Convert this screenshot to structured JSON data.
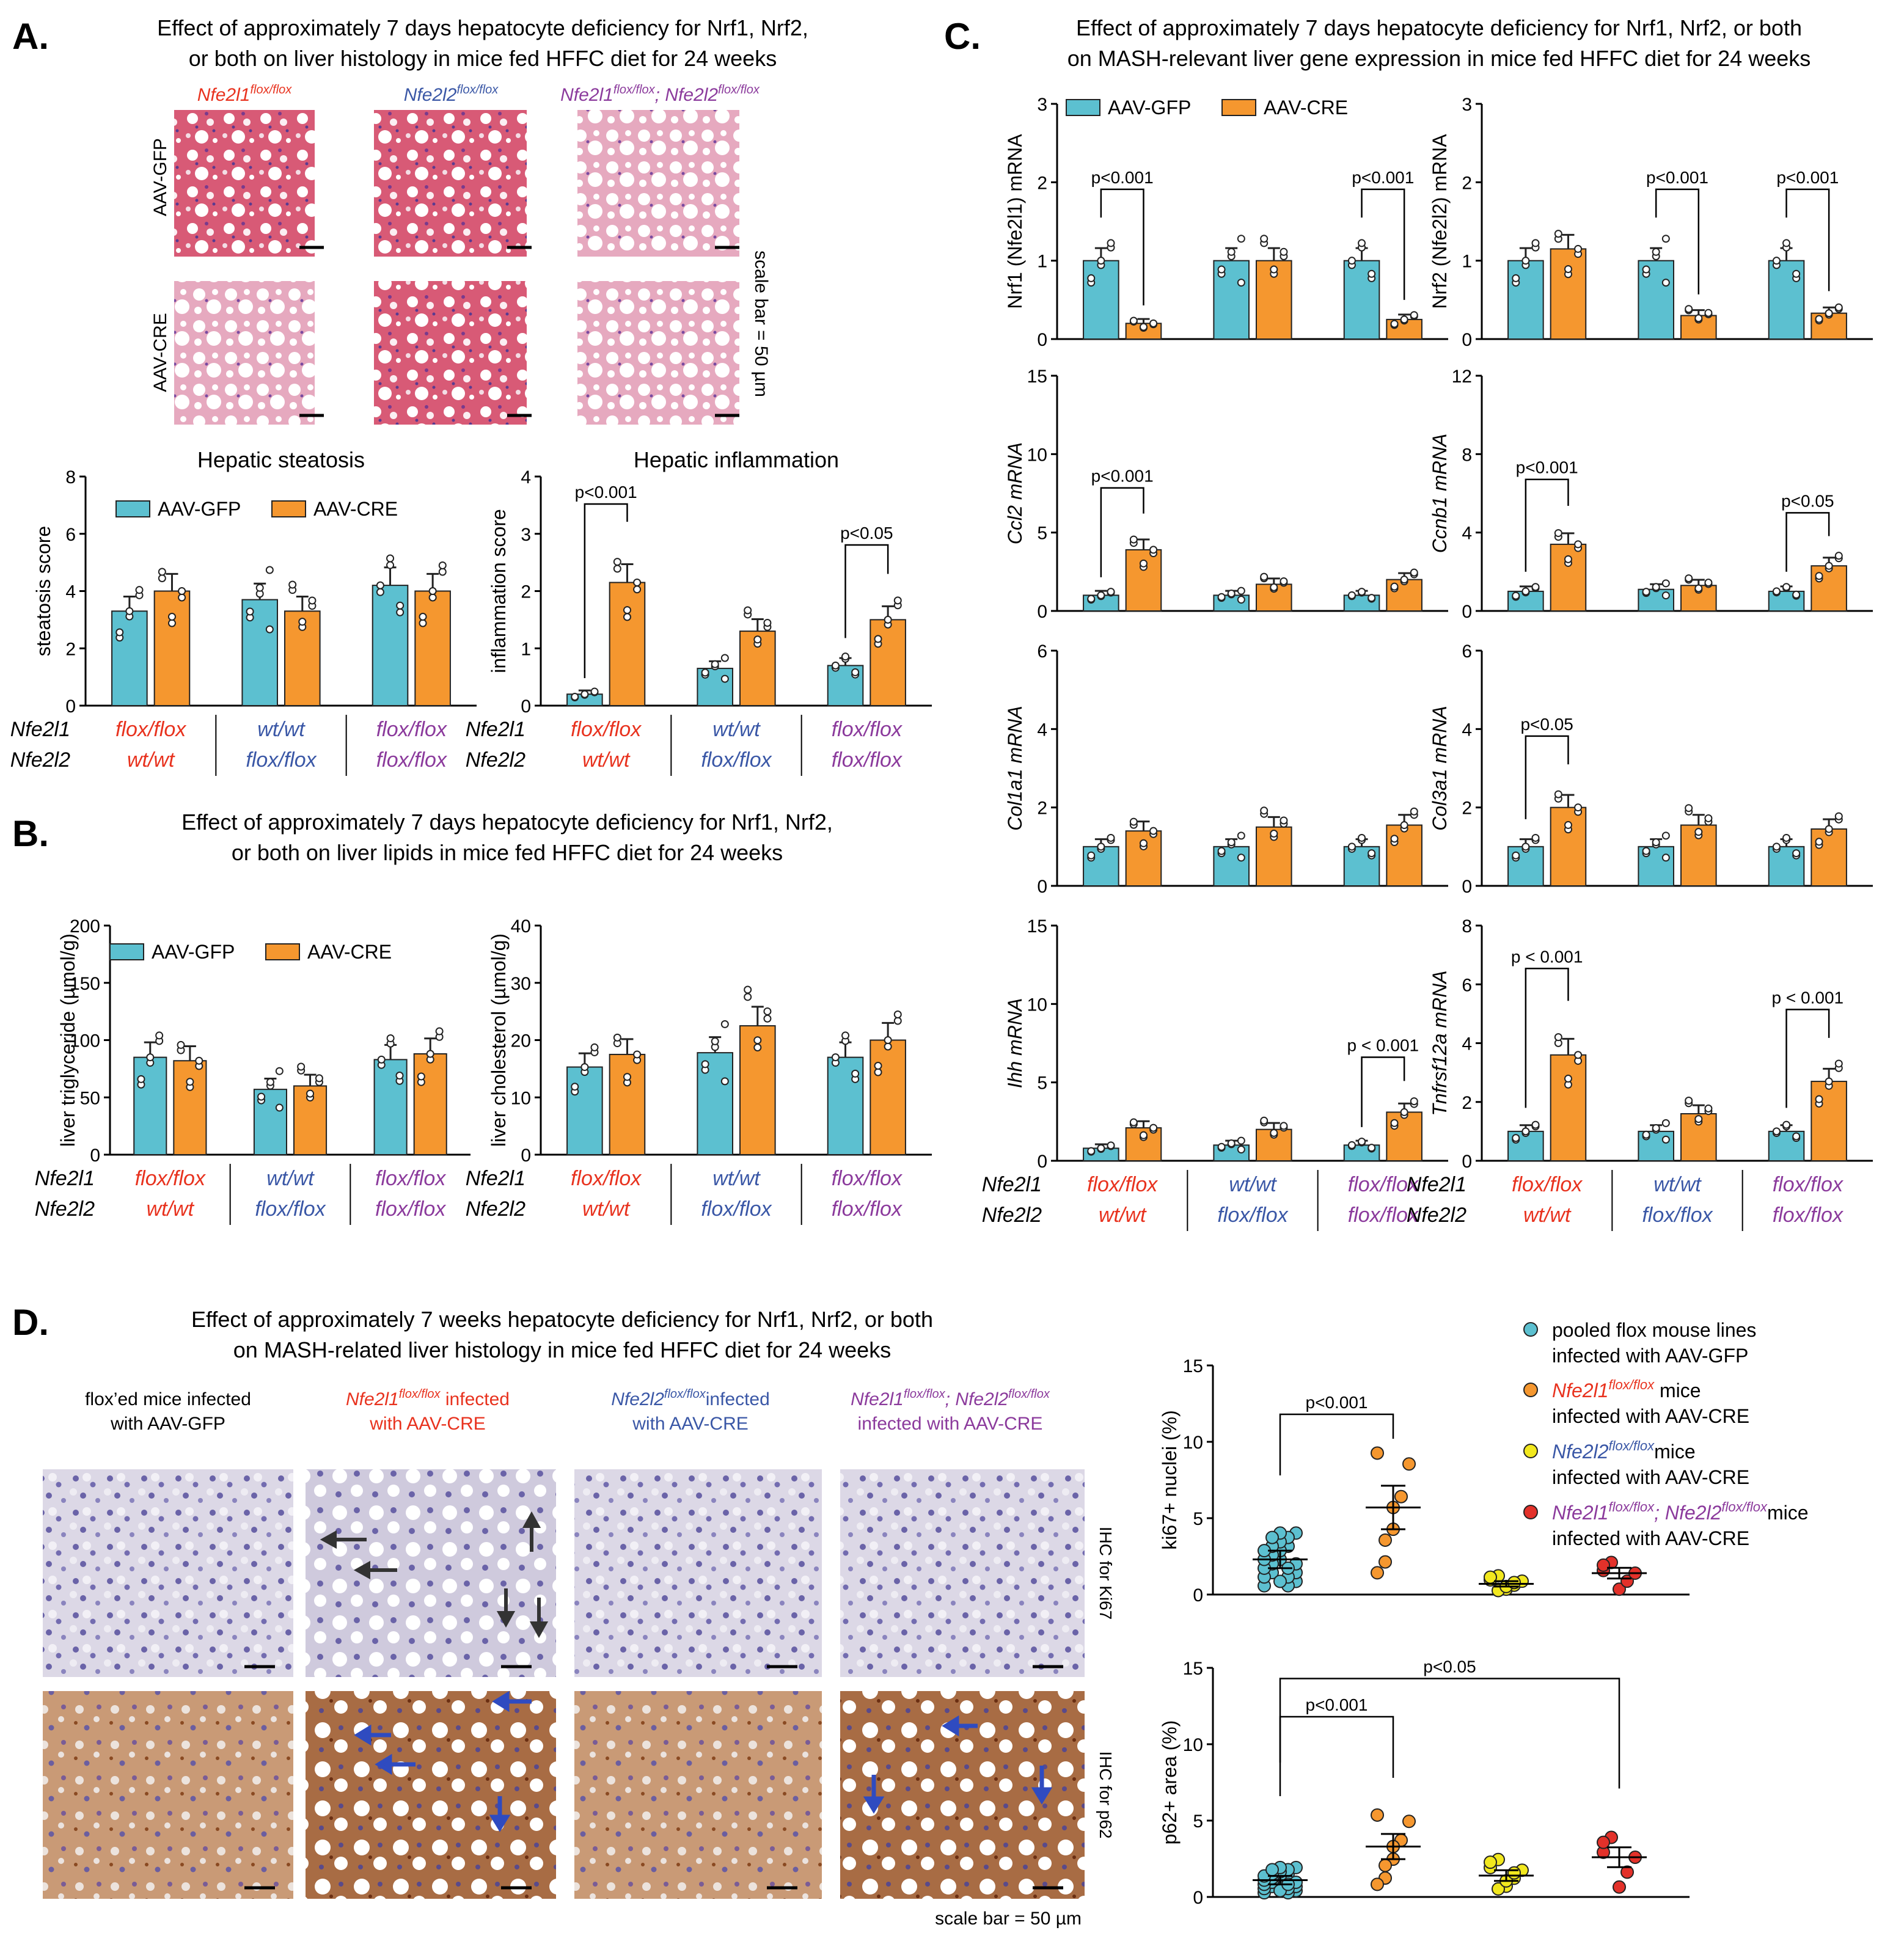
{
  "colors": {
    "gfp": "#5cc0d0",
    "cre": "#f5972f",
    "wt_red": "#e8321e",
    "flox_blue": "#3a57a6",
    "dbl_purple": "#8b3a9c",
    "ki_yellow": "#f2e81e",
    "ki_red": "#e3312a",
    "he_bg": "#d9607a",
    "ihc_bg": "#c9c4d6",
    "p62_bg": "#b98562"
  },
  "panels": {
    "A": "A.",
    "B": "B.",
    "C": "C.",
    "D": "D."
  },
  "A": {
    "title1": "Effect of approximately 7 days hepatocyte deficiency for Nrf1, Nrf2,",
    "title2": "or both on liver histology in mice fed HFFC diet for 24 weeks",
    "geno_cols": [
      "Nfe2l1",
      "Nfe2l2",
      "Nfe2l1"
    ],
    "geno_sup": "flox/flox",
    "geno_extra": "; ",
    "geno_extra2": "Nfe2l2",
    "rows": [
      "AAV-GFP",
      "AAV-CRE"
    ],
    "scale": "scale bar = 50 µm"
  },
  "B": {
    "title1": "Effect of approximately 7 days hepatocyte deficiency for Nrf1, Nrf2,",
    "title2": "or both on liver lipids in mice fed HFFC diet for 24 weeks"
  },
  "C": {
    "title1": "Effect of approximately 7 days hepatocyte deficiency for Nrf1, Nrf2, or both",
    "title2": "on MASH-relevant liver gene expression in mice fed HFFC diet for 24 weeks"
  },
  "D": {
    "title1": "Effect of approximately 7 weeks hepatocyte deficiency for Nrf1, Nrf2, or both",
    "title2": "on MASH-related liver histology in mice fed HFFC diet for 24 weeks",
    "col_labels": [
      [
        "flox’ed mice infected",
        "with AAV-GFP"
      ],
      [
        "Nfe2l1",
        "infected",
        "with AAV-CRE"
      ],
      [
        "Nfe2l2",
        "infected",
        "with AAV-CRE"
      ],
      [
        "Nfe2l1",
        "; Nfe2l2",
        "infected with AAV-CRE"
      ]
    ],
    "row_labels": [
      "IHC for Ki67",
      "IHC for p62"
    ],
    "scale": "scale bar = 50 µm",
    "legend": [
      [
        "pooled flox mouse lines",
        "infected with AAV-GFP"
      ],
      [
        "Nfe2l1",
        "mice",
        "infected with AAV-CRE"
      ],
      [
        "Nfe2l2",
        "mice",
        "infected with AAV-CRE"
      ],
      [
        "Nfe2l1",
        "; Nfe2l2",
        "mice",
        "infected with AAV-CRE"
      ]
    ]
  },
  "legend": {
    "gfp": "AAV-GFP",
    "cre": "AAV-CRE"
  },
  "genotype": {
    "row1": "Nfe2l1",
    "row2": "Nfe2l2",
    "g1": [
      "flox/flox",
      "wt/wt"
    ],
    "g2": [
      "wt/wt",
      "flox/flox"
    ],
    "g3": [
      "flox/flox",
      "flox/flox"
    ]
  },
  "chart_data": [
    {
      "id": "steatosis",
      "type": "bar",
      "title": "Hepatic steatosis",
      "ylabel": "steatosis score",
      "ylim": [
        0,
        8
      ],
      "yticks": [
        0,
        2,
        4,
        6,
        8
      ],
      "series": [
        {
          "name": "AAV-GFP",
          "values": [
            3.3,
            3.7,
            4.2
          ]
        },
        {
          "name": "AAV-CRE",
          "values": [
            4.0,
            3.3,
            4.0
          ]
        }
      ],
      "sig": []
    },
    {
      "id": "inflammation",
      "type": "bar",
      "title": "Hepatic inflammation",
      "ylabel": "inflammation score",
      "ylim": [
        0,
        4
      ],
      "yticks": [
        0,
        1,
        2,
        3,
        4
      ],
      "series": [
        {
          "name": "AAV-GFP",
          "values": [
            0.2,
            0.65,
            0.7
          ]
        },
        {
          "name": "AAV-CRE",
          "values": [
            2.15,
            1.3,
            1.5
          ]
        }
      ],
      "sig": [
        {
          "group": 0,
          "label": "p<0.001"
        },
        {
          "group": 2,
          "label": "p<0.05"
        }
      ]
    },
    {
      "id": "tg",
      "type": "bar",
      "ylabel": "liver triglyceride (µmol/g)",
      "ylim": [
        0,
        200
      ],
      "yticks": [
        0,
        50,
        100,
        150,
        200
      ],
      "series": [
        {
          "name": "AAV-GFP",
          "values": [
            85,
            57,
            83
          ]
        },
        {
          "name": "AAV-CRE",
          "values": [
            82,
            60,
            88
          ]
        }
      ],
      "sig": []
    },
    {
      "id": "chol",
      "type": "bar",
      "ylabel": "liver cholesterol (µmol/g)",
      "ylim": [
        0,
        40
      ],
      "yticks": [
        0,
        10,
        20,
        30,
        40
      ],
      "series": [
        {
          "name": "AAV-GFP",
          "values": [
            15.3,
            17.8,
            17
          ]
        },
        {
          "name": "AAV-CRE",
          "values": [
            17.5,
            22.5,
            20
          ]
        }
      ],
      "sig": []
    },
    {
      "id": "nrf1",
      "type": "bar",
      "ylabel": "Nrf1 (Nfe2l1) mRNA",
      "ylim": [
        0,
        3
      ],
      "yticks": [
        0,
        1,
        2,
        3
      ],
      "series": [
        {
          "name": "AAV-GFP",
          "values": [
            1.0,
            1.0,
            1.0
          ]
        },
        {
          "name": "AAV-CRE",
          "values": [
            0.2,
            1.0,
            0.25
          ]
        }
      ],
      "sig": [
        {
          "group": 0,
          "label": "p<0.001"
        },
        {
          "group": 2,
          "label": "p<0.001"
        }
      ]
    },
    {
      "id": "nrf2",
      "type": "bar",
      "ylabel": "Nrf2 (Nfe2l2) mRNA",
      "ylim": [
        0,
        3
      ],
      "yticks": [
        0,
        1,
        2,
        3
      ],
      "series": [
        {
          "name": "AAV-GFP",
          "values": [
            1.0,
            1.0,
            1.0
          ]
        },
        {
          "name": "AAV-CRE",
          "values": [
            1.15,
            0.3,
            0.33
          ]
        }
      ],
      "sig": [
        {
          "group": 1,
          "label": "p<0.001"
        },
        {
          "group": 2,
          "label": "p<0.001"
        }
      ]
    },
    {
      "id": "ccl2",
      "type": "bar",
      "ylabel": "Ccl2 mRNA",
      "ylim": [
        0,
        15
      ],
      "yticks": [
        0,
        5,
        10,
        15
      ],
      "series": [
        {
          "name": "AAV-GFP",
          "values": [
            1.0,
            1.0,
            1.0
          ]
        },
        {
          "name": "AAV-CRE",
          "values": [
            3.9,
            1.7,
            2.0
          ]
        }
      ],
      "sig": [
        {
          "group": 0,
          "label": "p<0.001"
        }
      ]
    },
    {
      "id": "ccnb1",
      "type": "bar",
      "ylabel": "Ccnb1 mRNA",
      "ylim": [
        0,
        12
      ],
      "yticks": [
        0,
        4,
        8,
        12
      ],
      "series": [
        {
          "name": "AAV-GFP",
          "values": [
            1.0,
            1.1,
            1.0
          ]
        },
        {
          "name": "AAV-CRE",
          "values": [
            3.4,
            1.3,
            2.3
          ]
        }
      ],
      "sig": [
        {
          "group": 0,
          "label": "p<0.001"
        },
        {
          "group": 2,
          "label": "p<0.05"
        }
      ]
    },
    {
      "id": "col1a1",
      "type": "bar",
      "ylabel": "Col1a1 mRNA",
      "ylim": [
        0,
        6
      ],
      "yticks": [
        0,
        2,
        4,
        6
      ],
      "series": [
        {
          "name": "AAV-GFP",
          "values": [
            1.0,
            1.0,
            1.0
          ]
        },
        {
          "name": "AAV-CRE",
          "values": [
            1.4,
            1.5,
            1.55
          ]
        }
      ],
      "sig": []
    },
    {
      "id": "col3a1",
      "type": "bar",
      "ylabel": "Col3a1 mRNA",
      "ylim": [
        0,
        6
      ],
      "yticks": [
        0,
        2,
        4,
        6
      ],
      "series": [
        {
          "name": "AAV-GFP",
          "values": [
            1.0,
            1.0,
            1.0
          ]
        },
        {
          "name": "AAV-CRE",
          "values": [
            2.0,
            1.55,
            1.45
          ]
        }
      ],
      "sig": [
        {
          "group": 0,
          "label": "p<0.05"
        }
      ]
    },
    {
      "id": "ihh",
      "type": "bar",
      "ylabel": "Ihh mRNA",
      "ylim": [
        0,
        15
      ],
      "yticks": [
        0,
        5,
        10,
        15
      ],
      "series": [
        {
          "name": "AAV-GFP",
          "values": [
            0.8,
            1.0,
            1.0
          ]
        },
        {
          "name": "AAV-CRE",
          "values": [
            2.1,
            2.0,
            3.1
          ]
        }
      ],
      "sig": [
        {
          "group": 2,
          "label": "p < 0.001"
        }
      ]
    },
    {
      "id": "tnfrsf12a",
      "type": "bar",
      "ylabel": "Tnfrsf12a mRNA",
      "ylim": [
        0,
        8
      ],
      "yticks": [
        0,
        2,
        4,
        6,
        8
      ],
      "series": [
        {
          "name": "AAV-GFP",
          "values": [
            1.0,
            1.0,
            1.0
          ]
        },
        {
          "name": "AAV-CRE",
          "values": [
            3.6,
            1.6,
            2.7
          ]
        }
      ],
      "sig": [
        {
          "group": 0,
          "label": "p < 0.001"
        },
        {
          "group": 2,
          "label": "p < 0.001"
        }
      ]
    },
    {
      "id": "ki67",
      "type": "scatter",
      "ylabel": "ki67+ nuclei (%)",
      "ylim": [
        0,
        15
      ],
      "yticks": [
        0,
        5,
        10,
        15
      ],
      "means": [
        2.3,
        5.7,
        0.7,
        1.4
      ],
      "sig": [
        {
          "from": 0,
          "to": 1,
          "label": "p<0.001"
        }
      ]
    },
    {
      "id": "p62",
      "type": "scatter",
      "ylabel": "p62+ area (%)",
      "ylim": [
        0,
        15
      ],
      "yticks": [
        0,
        5,
        10,
        15
      ],
      "means": [
        1.1,
        3.3,
        1.4,
        2.6
      ],
      "sig": [
        {
          "from": 0,
          "to": 1,
          "label": "p<0.001"
        },
        {
          "from": 0,
          "to": 3,
          "label": "p<0.05"
        }
      ]
    }
  ]
}
